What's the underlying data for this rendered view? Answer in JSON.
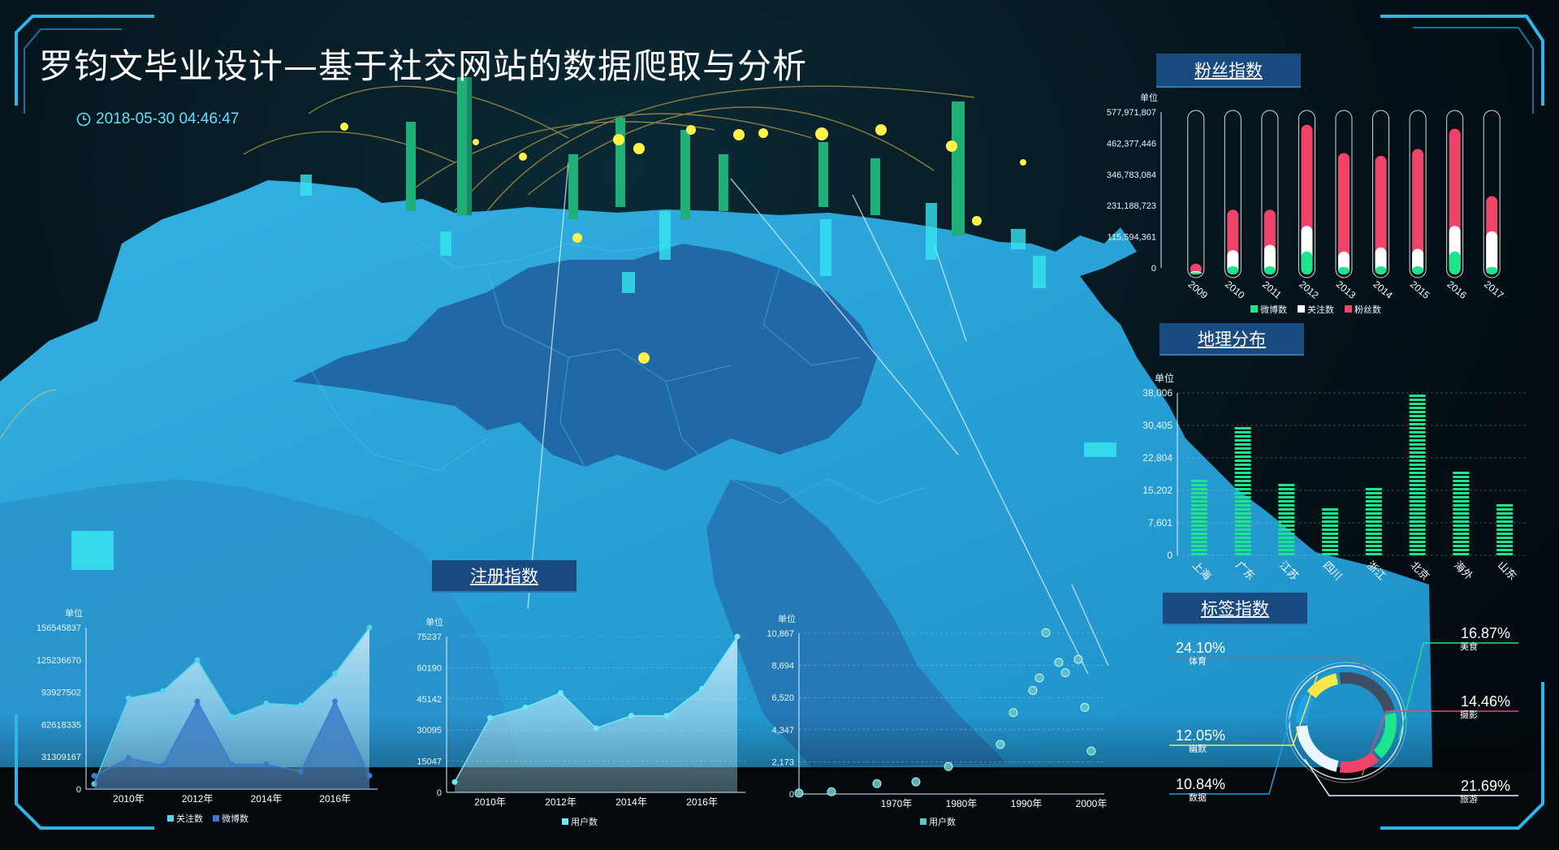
{
  "header": {
    "title": "罗钧文毕业设计—基于社交网站的数据爬取与分析",
    "datetime": "2018-05-30 04:46:47"
  },
  "panels": {
    "fans_label": "粉丝指数",
    "geo_label": "地理分布",
    "register_label": "注册指数",
    "tags_label": "标签指数"
  },
  "colors": {
    "accent": "#5fe0ff",
    "panel_bg": "#1a4b80",
    "weibo": "#1ee58c",
    "follow": "#ffffff",
    "fans": "#f0436a",
    "map_light": "#2aa4d8",
    "map_dark": "#2168a7"
  },
  "chart_data": [
    {
      "id": "fans",
      "type": "bar",
      "title": "粉丝指数",
      "ylabel": "单位",
      "categories": [
        "2009",
        "2010",
        "2011",
        "2012",
        "2013",
        "2014",
        "2015",
        "2016",
        "2017"
      ],
      "yticks": [
        "577,971,807",
        "462,377,446",
        "346,783,084",
        "231,188,723",
        "115,594,361",
        "0"
      ],
      "ylim": [
        0,
        577971807
      ],
      "series": [
        {
          "name": "微博数",
          "color": "#1ee58c",
          "values": [
            8000000,
            30000000,
            30000000,
            85000000,
            28000000,
            30000000,
            30000000,
            85000000,
            28000000
          ]
        },
        {
          "name": "关注数",
          "color": "#ffffff",
          "values": [
            12000000,
            90000000,
            110000000,
            180000000,
            85000000,
            100000000,
            95000000,
            180000000,
            160000000
          ]
        },
        {
          "name": "粉丝数",
          "color": "#f0436a",
          "values": [
            40000000,
            240000000,
            240000000,
            555000000,
            450000000,
            440000000,
            465000000,
            540000000,
            290000000
          ]
        }
      ]
    },
    {
      "id": "geo",
      "type": "bar",
      "title": "地理分布",
      "ylabel": "单位",
      "categories": [
        "上海",
        "广东",
        "江苏",
        "四川",
        "浙江",
        "北京",
        "海外",
        "山东"
      ],
      "yticks": [
        "38,006",
        "30,405",
        "22,804",
        "15,202",
        "7,601",
        "0"
      ],
      "ylim": [
        0,
        38006
      ],
      "values": [
        17800,
        30200,
        16800,
        11300,
        15800,
        37800,
        20200,
        12700
      ]
    },
    {
      "id": "follow_weibo",
      "type": "area",
      "ylabel": "单位",
      "yticks": [
        "156545837",
        "125236670",
        "93927502",
        "62618335",
        "31309167",
        "0"
      ],
      "ylim": [
        0,
        156545837
      ],
      "x": [
        2009,
        2010,
        2011,
        2012,
        2013,
        2014,
        2015,
        2016,
        2017
      ],
      "xticks": [
        "2010年",
        "2012年",
        "2014年",
        "2016年"
      ],
      "series": [
        {
          "name": "关注数",
          "color": "#4fd6ec",
          "values": [
            5000000,
            88000000,
            95000000,
            125000000,
            70000000,
            83000000,
            81000000,
            112000000,
            156545837
          ]
        },
        {
          "name": "微博数",
          "color": "#3a7bd0",
          "values": [
            13000000,
            30000000,
            23000000,
            85000000,
            24000000,
            24000000,
            17000000,
            85000000,
            13000000
          ]
        }
      ]
    },
    {
      "id": "users_area",
      "type": "area",
      "ylabel": "单位",
      "yticks": [
        "75237",
        "60190",
        "45142",
        "30095",
        "15047",
        "0"
      ],
      "ylim": [
        0,
        75237
      ],
      "x": [
        2009,
        2010,
        2011,
        2012,
        2013,
        2014,
        2015,
        2016,
        2017
      ],
      "xticks": [
        "2010年",
        "2012年",
        "2014年",
        "2016年"
      ],
      "series": [
        {
          "name": "用户数",
          "color": "#6ee9f5",
          "values": [
            5000,
            36000,
            41000,
            48000,
            31000,
            37000,
            37000,
            50000,
            75237
          ]
        }
      ]
    },
    {
      "id": "users_scatter",
      "type": "scatter",
      "ylabel": "单位",
      "yticks": [
        "10,867",
        "8,694",
        "6,520",
        "4,347",
        "2,173",
        "0"
      ],
      "ylim": [
        0,
        10867
      ],
      "xlim": [
        1955,
        2002
      ],
      "xticks": [
        "1970年",
        "1980年",
        "1990年",
        "2000年"
      ],
      "series": [
        {
          "name": "用户数",
          "color": "#5fc6c6",
          "points": [
            [
              1955,
              60
            ],
            [
              1960,
              150
            ],
            [
              1967,
              700
            ],
            [
              1973,
              820
            ],
            [
              1978,
              1850
            ],
            [
              1986,
              3350
            ],
            [
              1988,
              5500
            ],
            [
              1991,
              7000
            ],
            [
              1992,
              7850
            ],
            [
              1993,
              10900
            ],
            [
              1995,
              8900
            ],
            [
              1996,
              8200
            ],
            [
              1999,
              5850
            ],
            [
              2000,
              2900
            ],
            [
              1998,
              9100
            ]
          ]
        }
      ]
    },
    {
      "id": "tags",
      "type": "pie",
      "title": "标签指数",
      "slices": [
        {
          "label": "体育",
          "value": 24.1,
          "percent": "24.10%",
          "color": "#3d4e63"
        },
        {
          "label": "美食",
          "value": 16.87,
          "percent": "16.87%",
          "color": "#1ee58c"
        },
        {
          "label": "摄影",
          "value": 14.46,
          "percent": "14.46%",
          "color": "#f0436a"
        },
        {
          "label": "旅游",
          "value": 21.69,
          "percent": "21.69%",
          "color": "#eaf6ff"
        },
        {
          "label": "数据",
          "value": 10.84,
          "percent": "10.84%",
          "color": "#1aa3e6"
        },
        {
          "label": "幽默",
          "value": 12.05,
          "percent": "12.05%",
          "color": "#f6e84a"
        }
      ]
    }
  ]
}
